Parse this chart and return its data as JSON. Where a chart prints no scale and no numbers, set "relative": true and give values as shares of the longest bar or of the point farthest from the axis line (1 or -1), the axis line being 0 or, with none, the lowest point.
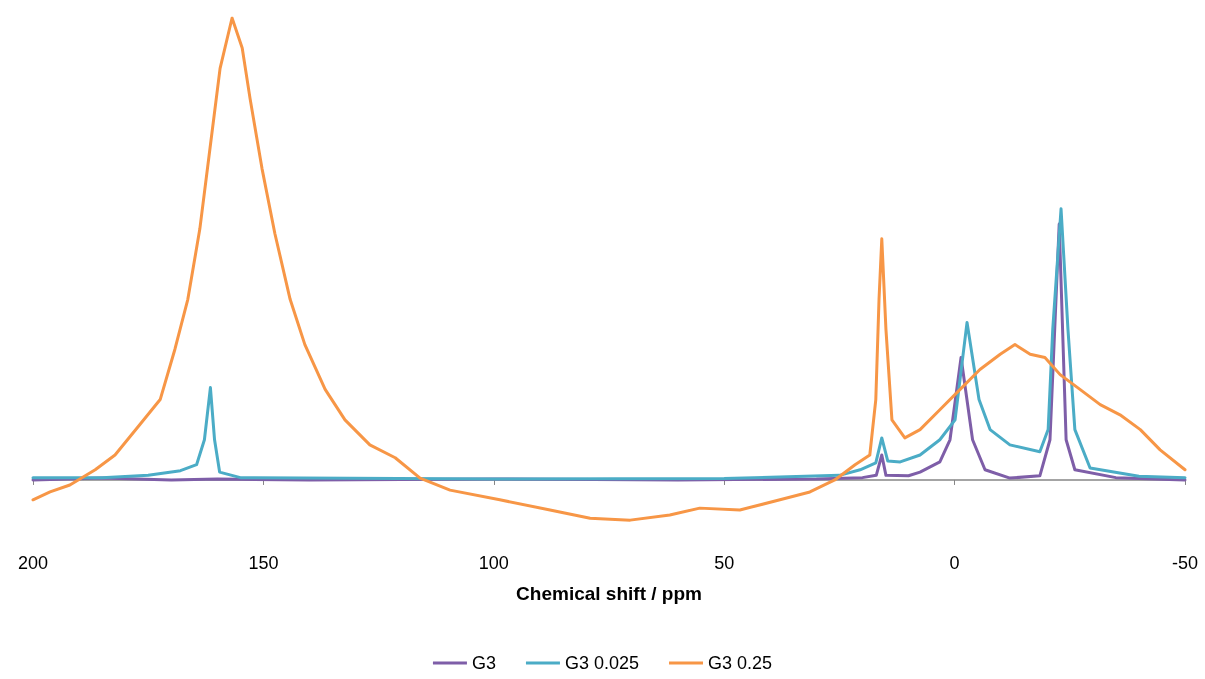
{
  "chart_data": {
    "type": "line",
    "xlabel": "Chemical shift / ppm",
    "relative": true,
    "xlim": [
      200,
      -50
    ],
    "xticks": [
      200,
      150,
      100,
      50,
      0,
      -50
    ],
    "legend": "bottom",
    "marker": "none",
    "line_style": "solid",
    "grid": false,
    "series": [
      {
        "name": "G3",
        "color": "#7e5ea8",
        "x": [
          200,
          185,
          170,
          160,
          140,
          100,
          60,
          30,
          20,
          17,
          15.8,
          14.9,
          10,
          7.5,
          3.2,
          1,
          -1.4,
          -3.9,
          -6.6,
          -12,
          -18.5,
          -20.7,
          -22.7,
          -24.2,
          -26.1,
          -35,
          -50
        ],
        "values": [
          0,
          0.004,
          0,
          0.002,
          0,
          0.002,
          0,
          0.002,
          0.005,
          0.01,
          0.054,
          0.01,
          0.009,
          0.017,
          0.039,
          0.087,
          0.265,
          0.087,
          0.022,
          0.004,
          0.009,
          0.087,
          0.554,
          0.087,
          0.022,
          0.005,
          0
        ]
      },
      {
        "name": "G3 0.025",
        "color": "#4bacc6",
        "x": [
          200,
          185,
          175,
          168,
          164.5,
          162.8,
          161.5,
          160.6,
          159.5,
          155,
          100,
          50,
          25,
          20.5,
          17.1,
          15.8,
          14.5,
          11.8,
          7.5,
          3.2,
          -0.1,
          -2.7,
          -5.3,
          -7.7,
          -12,
          -18.5,
          -20.3,
          -21.3,
          -23.1,
          -24.6,
          -26.1,
          -29.4,
          -40,
          -50
        ],
        "values": [
          0.005,
          0.005,
          0.01,
          0.02,
          0.033,
          0.087,
          0.2,
          0.087,
          0.017,
          0.005,
          0.002,
          0.003,
          0.01,
          0.022,
          0.037,
          0.091,
          0.041,
          0.039,
          0.054,
          0.087,
          0.13,
          0.341,
          0.174,
          0.109,
          0.076,
          0.061,
          0.109,
          0.326,
          0.587,
          0.326,
          0.109,
          0.026,
          0.008,
          0.005
        ]
      },
      {
        "name": "G3 0.25",
        "color": "#f79646",
        "x": [
          200,
          196.3,
          192,
          186.5,
          182.2,
          176.8,
          172.4,
          169.2,
          166.4,
          163.8,
          161.6,
          159.4,
          156.8,
          154.6,
          152.9,
          150.3,
          147.5,
          144.2,
          141,
          136.6,
          132.3,
          126.9,
          121.4,
          116,
          109.5,
          98.7,
          87.8,
          79.1,
          70.4,
          61.8,
          55.3,
          46.6,
          37.9,
          31.4,
          26,
          21.6,
          18.4,
          17.1,
          16.4,
          15.8,
          14.9,
          13.6,
          10.8,
          7.5,
          3.2,
          -1.2,
          -5.5,
          -9.9,
          -13.1,
          -16.4,
          -19.6,
          -22.9,
          -27.2,
          -31.6,
          -35.9,
          -40.3,
          -44.6,
          -50
        ],
        "values": [
          -0.043,
          -0.026,
          -0.011,
          0.022,
          0.054,
          0.12,
          0.174,
          0.283,
          0.391,
          0.543,
          0.717,
          0.891,
          1,
          0.935,
          0.826,
          0.674,
          0.533,
          0.391,
          0.293,
          0.196,
          0.13,
          0.076,
          0.048,
          0.004,
          -0.022,
          -0.043,
          -0.065,
          -0.083,
          -0.087,
          -0.076,
          -0.061,
          -0.065,
          -0.043,
          -0.026,
          0,
          0.033,
          0.054,
          0.174,
          0.391,
          0.522,
          0.326,
          0.13,
          0.091,
          0.109,
          0.152,
          0.196,
          0.239,
          0.272,
          0.293,
          0.272,
          0.265,
          0.228,
          0.196,
          0.163,
          0.141,
          0.109,
          0.065,
          0.022
        ]
      }
    ]
  }
}
